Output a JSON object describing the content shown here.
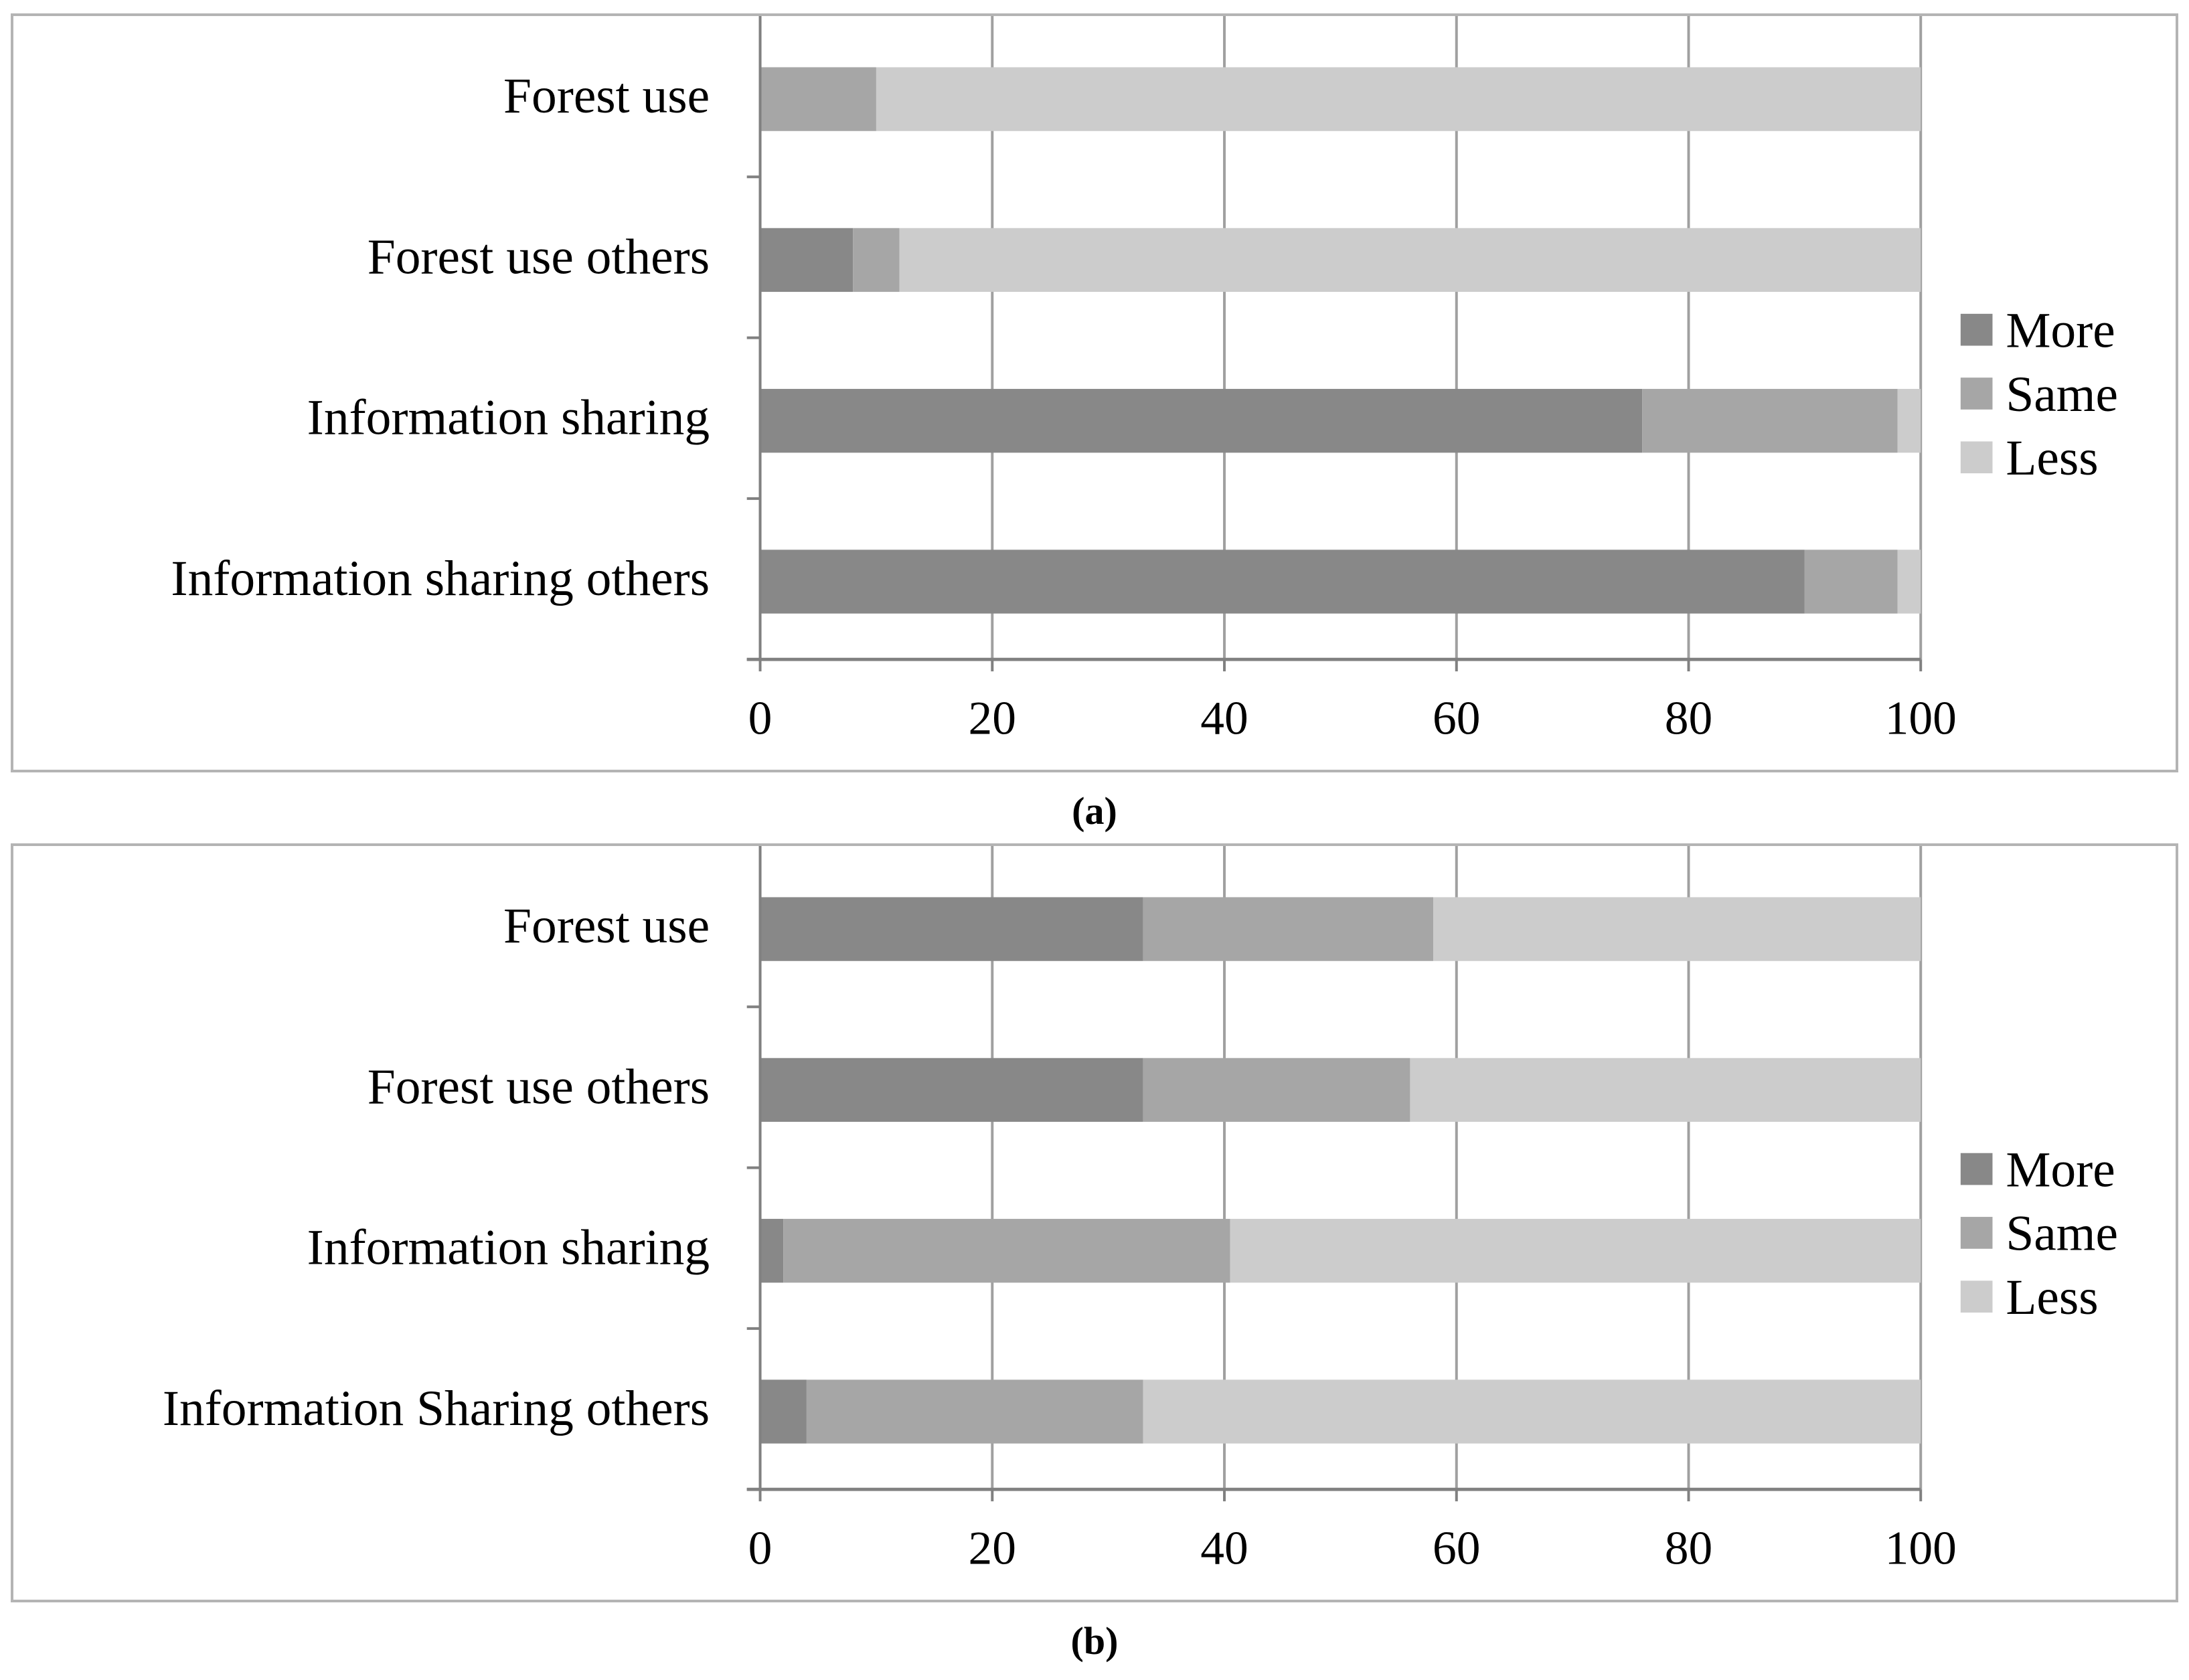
{
  "captions": [
    "(a)",
    "(b)"
  ],
  "chart_data": [
    {
      "type": "bar",
      "orientation": "horizontal",
      "stacked": true,
      "categories": [
        "Forest use",
        "Forest use others",
        "Information sharing",
        "Information sharing others"
      ],
      "series": [
        {
          "name": "More",
          "values": [
            0,
            8,
            76,
            90
          ]
        },
        {
          "name": "Same",
          "values": [
            10,
            4,
            22,
            8
          ]
        },
        {
          "name": "Less",
          "values": [
            90,
            88,
            2,
            2
          ]
        }
      ],
      "xlim": [
        0,
        100
      ],
      "xticks": [
        0,
        20,
        40,
        60,
        80,
        100
      ],
      "grid": true,
      "legend": "right"
    },
    {
      "type": "bar",
      "orientation": "horizontal",
      "stacked": true,
      "categories": [
        "Forest use",
        "Forest use others",
        "Information sharing",
        "Information Sharing others"
      ],
      "series": [
        {
          "name": "More",
          "values": [
            33,
            33,
            2,
            4
          ]
        },
        {
          "name": "Same",
          "values": [
            25,
            23,
            38.5,
            29
          ]
        },
        {
          "name": "Less",
          "values": [
            42,
            44,
            59.5,
            67
          ]
        }
      ],
      "xlim": [
        0,
        100
      ],
      "xticks": [
        0,
        20,
        40,
        60,
        80,
        100
      ],
      "grid": true,
      "legend": "right"
    }
  ],
  "colors": {
    "More": "#888888",
    "Same": "#a6a6a6",
    "Less": "#cccccc",
    "grid": "#a0a0a0",
    "axis": "#808080"
  }
}
